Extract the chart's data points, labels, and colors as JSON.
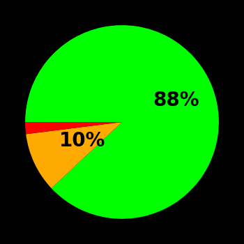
{
  "wedge_sizes": [
    88,
    10,
    2
  ],
  "wedge_colors": [
    "#00ff00",
    "#ffaa00",
    "#ff0000"
  ],
  "label_texts": [
    "88%",
    "10%",
    ""
  ],
  "label_radii": [
    0.6,
    0.45,
    0
  ],
  "background_color": "#000000",
  "startangle": 180,
  "counterclock": false,
  "figsize": [
    3.5,
    3.5
  ],
  "dpi": 100,
  "text_color": "#000000",
  "fontsize": 20,
  "fontweight": "bold"
}
